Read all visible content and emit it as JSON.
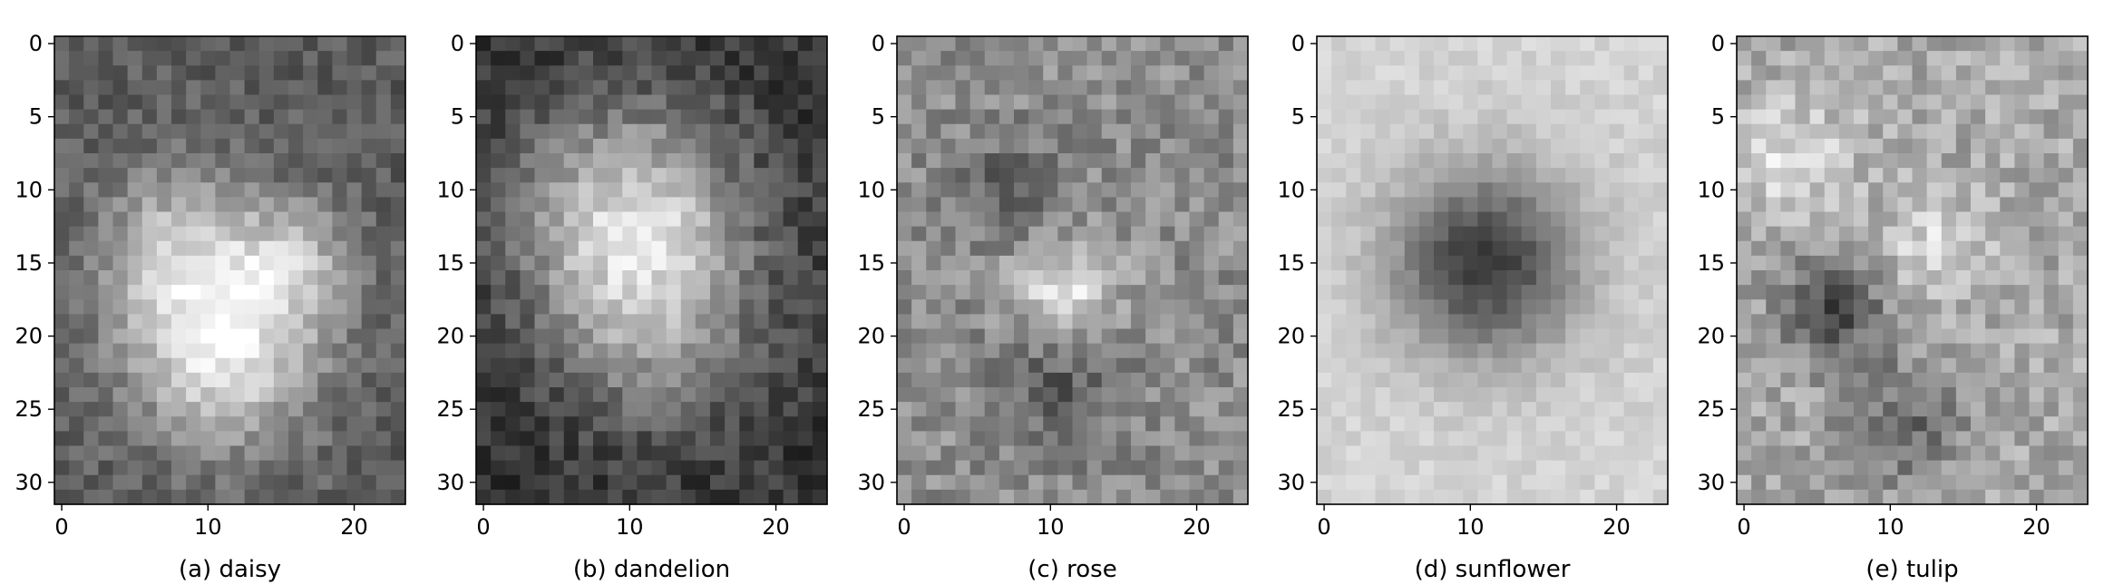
{
  "figure": {
    "panel_count": 5
  },
  "chart_data": [
    {
      "type": "heatmap",
      "colormap": "grayscale",
      "label": "(a) daisy",
      "rows": 32,
      "cols": 24,
      "xlim": [
        -0.5,
        23.5
      ],
      "ylim": [
        31.5,
        -0.5
      ],
      "xticks": [
        0,
        10,
        20
      ],
      "yticks": [
        0,
        5,
        10,
        15,
        20,
        25,
        30
      ],
      "pattern": {
        "base": 0.36,
        "blobs": [
          [
            11,
            21,
            4.5,
            0.55
          ],
          [
            8,
            14,
            4,
            0.36
          ],
          [
            16,
            15,
            3,
            0.3
          ]
        ],
        "noise": 0.1
      },
      "grid": false
    },
    {
      "type": "heatmap",
      "colormap": "grayscale",
      "label": "(b) dandelion",
      "rows": 32,
      "cols": 24,
      "xlim": [
        -0.5,
        23.5
      ],
      "ylim": [
        31.5,
        -0.5
      ],
      "xticks": [
        0,
        10,
        20
      ],
      "yticks": [
        0,
        5,
        10,
        15,
        20,
        25,
        30
      ],
      "pattern": {
        "base": 0.2,
        "blobs": [
          [
            10,
            12,
            5.5,
            0.62
          ],
          [
            12,
            20,
            5,
            0.3
          ]
        ],
        "noise": 0.11
      },
      "grid": false
    },
    {
      "type": "heatmap",
      "colormap": "grayscale",
      "label": "(c) rose",
      "rows": 32,
      "cols": 24,
      "xlim": [
        -0.5,
        23.5
      ],
      "ylim": [
        31.5,
        -0.5
      ],
      "xticks": [
        0,
        10,
        20
      ],
      "yticks": [
        0,
        5,
        10,
        15,
        20,
        25,
        30
      ],
      "pattern": {
        "base": 0.55,
        "blobs": [
          [
            11,
            17,
            2.5,
            0.35
          ],
          [
            7,
            10,
            2.5,
            -0.2
          ],
          [
            11,
            23,
            3,
            -0.2
          ]
        ],
        "noise": 0.13
      },
      "grid": false
    },
    {
      "type": "heatmap",
      "colormap": "grayscale",
      "label": "(d) sunflower",
      "rows": 32,
      "cols": 24,
      "xlim": [
        -0.5,
        23.5
      ],
      "ylim": [
        31.5,
        -0.5
      ],
      "xticks": [
        0,
        10,
        20
      ],
      "yticks": [
        0,
        5,
        10,
        15,
        20,
        25,
        30
      ],
      "pattern": {
        "base": 0.83,
        "blobs": [
          [
            11,
            15,
            4.5,
            -0.6
          ]
        ],
        "noise": 0.05
      },
      "grid": false
    },
    {
      "type": "heatmap",
      "colormap": "grayscale",
      "label": "(e) tulip",
      "rows": 32,
      "cols": 24,
      "xlim": [
        -0.5,
        23.5
      ],
      "ylim": [
        31.5,
        -0.5
      ],
      "xticks": [
        0,
        10,
        20
      ],
      "yticks": [
        0,
        5,
        10,
        15,
        20,
        25,
        30
      ],
      "pattern": {
        "base": 0.66,
        "blobs": [
          [
            6,
            18,
            2.5,
            -0.38
          ],
          [
            11,
            26,
            3,
            -0.25
          ],
          [
            13,
            14,
            2.5,
            0.2
          ],
          [
            3,
            8,
            3,
            0.2
          ]
        ],
        "noise": 0.13
      },
      "grid": false
    }
  ]
}
